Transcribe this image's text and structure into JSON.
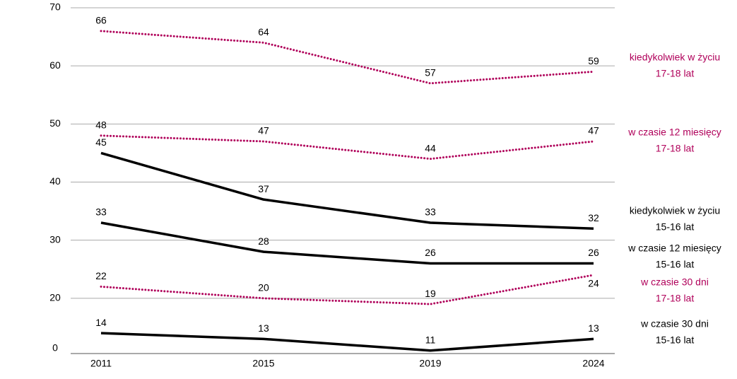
{
  "chart_data": {
    "type": "line",
    "categories": [
      "2011",
      "2015",
      "2019",
      "2024"
    ],
    "series": [
      {
        "name": "kiedykolwiek w życiu",
        "age": "17-18 lat",
        "color": "#b0005a",
        "dotted": true,
        "values": [
          66,
          64,
          57,
          59
        ]
      },
      {
        "name": "w czasie 12 miesięcy",
        "age": "17-18 lat",
        "color": "#b0005a",
        "dotted": true,
        "values": [
          48,
          47,
          44,
          47
        ]
      },
      {
        "name": "kiedykolwiek w życiu",
        "age": "15-16 lat",
        "color": "#000000",
        "dotted": false,
        "values": [
          45,
          37,
          33,
          32
        ]
      },
      {
        "name": "w czasie 12 miesięcy",
        "age": "15-16 lat",
        "color": "#000000",
        "dotted": false,
        "values": [
          33,
          28,
          26,
          26
        ]
      },
      {
        "name": "w czasie 30 dni",
        "age": "17-18 lat",
        "color": "#b0005a",
        "dotted": true,
        "values": [
          22,
          20,
          19,
          24
        ]
      },
      {
        "name": "w czasie 30 dni",
        "age": "15-16 lat",
        "color": "#000000",
        "dotted": false,
        "values": [
          14,
          13,
          11,
          13
        ]
      }
    ],
    "ylim": [
      10,
      70
    ],
    "yticks": [
      70,
      60,
      50,
      40,
      30,
      20,
      {
        "value": 10,
        "label": "0"
      }
    ],
    "grid": true
  }
}
